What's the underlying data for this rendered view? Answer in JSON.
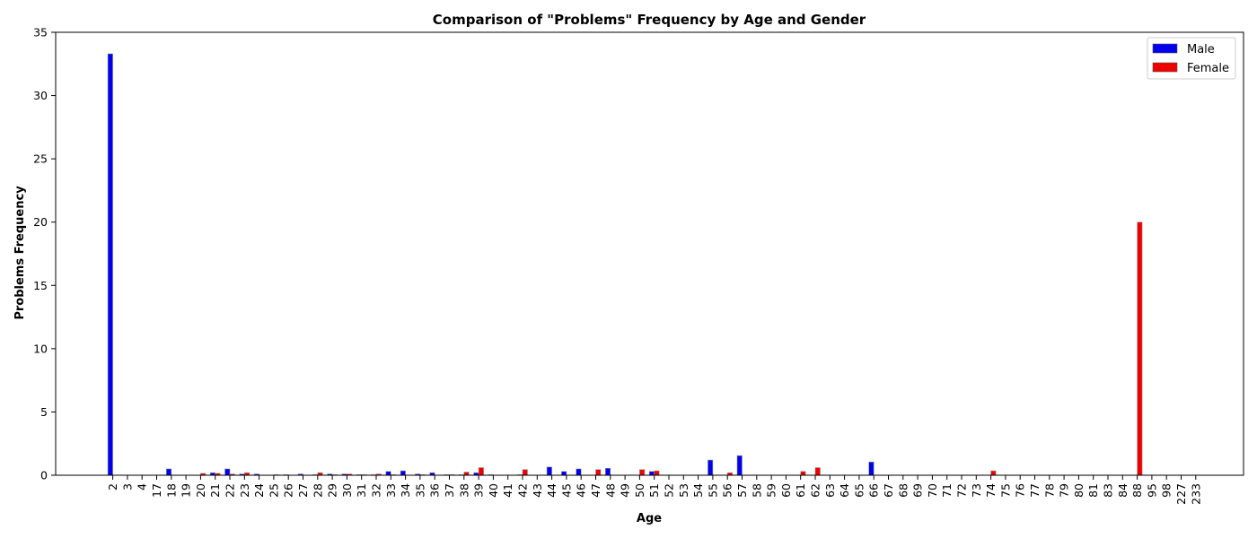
{
  "chart_data": {
    "type": "bar",
    "title": "Comparison of \"Problems\" Frequency by Age and Gender",
    "xlabel": "Age",
    "ylabel": "Problems Frequency",
    "ylim": [
      0,
      35
    ],
    "yticks": [
      0,
      5,
      10,
      15,
      20,
      25,
      30,
      35
    ],
    "grid": false,
    "legend_position": "top-right",
    "categories": [
      "2",
      "3",
      "4",
      "17",
      "18",
      "19",
      "20",
      "21",
      "22",
      "23",
      "24",
      "25",
      "26",
      "27",
      "28",
      "29",
      "30",
      "31",
      "32",
      "33",
      "34",
      "35",
      "36",
      "37",
      "38",
      "39",
      "40",
      "41",
      "42",
      "43",
      "44",
      "45",
      "46",
      "47",
      "48",
      "49",
      "50",
      "51",
      "52",
      "53",
      "54",
      "55",
      "56",
      "57",
      "58",
      "59",
      "60",
      "61",
      "62",
      "63",
      "64",
      "65",
      "66",
      "67",
      "68",
      "69",
      "70",
      "71",
      "72",
      "73",
      "74",
      "75",
      "76",
      "77",
      "78",
      "79",
      "80",
      "81",
      "83",
      "84",
      "88",
      "95",
      "98",
      "227",
      "233"
    ],
    "series": [
      {
        "name": "Male",
        "color": "#0000ee",
        "values": [
          33.3,
          0,
          0,
          0,
          0.5,
          0,
          0,
          0.2,
          0.5,
          0.1,
          0.1,
          0,
          0.05,
          0.1,
          0.05,
          0.1,
          0.1,
          0.05,
          0.05,
          0.3,
          0.35,
          0.1,
          0.2,
          0.05,
          0.05,
          0.2,
          0.05,
          0,
          0.05,
          0,
          0.65,
          0.3,
          0.5,
          0,
          0.55,
          0,
          0,
          0.3,
          0,
          0,
          0,
          1.2,
          0,
          1.55,
          0,
          0,
          0,
          0,
          0,
          0,
          0,
          0,
          1.05,
          0,
          0,
          0,
          0,
          0,
          0,
          0,
          0,
          0,
          0,
          0,
          0,
          0,
          0,
          0,
          0,
          0,
          0,
          0,
          0,
          0,
          0
        ]
      },
      {
        "name": "Female",
        "color": "#ee0000",
        "values": [
          0,
          0,
          0,
          0,
          0,
          0,
          0.15,
          0.15,
          0.1,
          0.2,
          0,
          0.05,
          0,
          0,
          0.2,
          0.05,
          0.1,
          0.05,
          0.1,
          0.05,
          0,
          0.05,
          0,
          0.05,
          0.25,
          0.6,
          0,
          0,
          0.45,
          0,
          0,
          0,
          0,
          0.45,
          0,
          0,
          0.45,
          0.35,
          0,
          0,
          0,
          0,
          0.2,
          0,
          0,
          0,
          0,
          0.3,
          0.6,
          0,
          0,
          0,
          0,
          0,
          0,
          0,
          0,
          0,
          0,
          0,
          0.35,
          0,
          0,
          0,
          0,
          0,
          0,
          0,
          0,
          0,
          20,
          0,
          0,
          0,
          0
        ]
      }
    ]
  }
}
